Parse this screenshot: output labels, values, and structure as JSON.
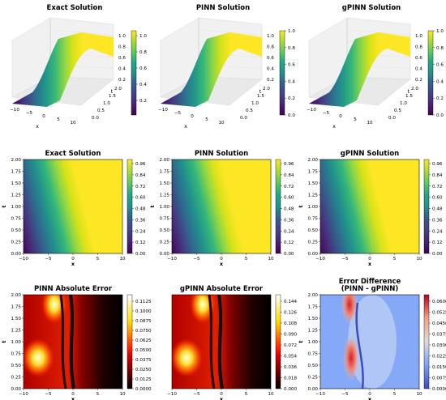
{
  "chart_data": [
    {
      "type": "surface3d",
      "title": "Exact Solution",
      "x_label": "x",
      "t_label": "t",
      "x_ticks": [
        "−10",
        "−5",
        "0",
        "5",
        "10"
      ],
      "t_ticks": [
        "0.0",
        "0.5",
        "1.0",
        "1.5",
        "2.0"
      ],
      "z_ticks": [
        "0.2",
        "0.4",
        "0.6",
        "0.8",
        "1.0"
      ],
      "colorbar_ticks": [
        "0.2",
        "0.4",
        "0.6",
        "0.8",
        "1.0"
      ],
      "colormap": "viridis"
    },
    {
      "type": "surface3d",
      "title": "PINN Solution",
      "x_label": "x",
      "t_label": "t",
      "x_ticks": [
        "−10",
        "−5",
        "0",
        "5",
        "10"
      ],
      "t_ticks": [
        "0.0",
        "0.5",
        "1.0",
        "1.5",
        "2.0"
      ],
      "z_ticks": [
        "0.2",
        "0.4",
        "0.6",
        "0.8",
        "1.0"
      ],
      "colorbar_ticks": [
        "0.0",
        "0.2",
        "0.4",
        "0.6",
        "0.8",
        "1.0"
      ],
      "colormap": "viridis"
    },
    {
      "type": "surface3d",
      "title": "gPINN Solution",
      "x_label": "x",
      "t_label": "t",
      "x_ticks": [
        "−10",
        "−5",
        "0",
        "5",
        "10"
      ],
      "t_ticks": [
        "0.0",
        "0.5",
        "1.0",
        "1.5",
        "2.0"
      ],
      "z_ticks": [
        "0.2",
        "0.4",
        "0.6",
        "0.8",
        "1.0"
      ],
      "colorbar_ticks": [
        "0.0",
        "0.2",
        "0.4",
        "0.6",
        "0.8",
        "1.0"
      ],
      "colormap": "viridis"
    },
    {
      "type": "heatmap",
      "title": "Exact Solution",
      "xlabel": "x",
      "ylabel": "t",
      "x_ticks": [
        "−10",
        "−5",
        "0",
        "5",
        "10"
      ],
      "y_ticks": [
        "0.00",
        "0.25",
        "0.50",
        "0.75",
        "1.00",
        "1.25",
        "1.50",
        "1.75",
        "2.00"
      ],
      "colorbar_ticks": [
        "0.00",
        "0.12",
        "0.24",
        "0.36",
        "0.48",
        "0.60",
        "0.72",
        "0.84",
        "0.96"
      ],
      "colormap": "viridis"
    },
    {
      "type": "heatmap",
      "title": "PINN Solution",
      "xlabel": "x",
      "ylabel": "t",
      "x_ticks": [
        "−10",
        "−5",
        "0",
        "5",
        "10"
      ],
      "y_ticks": [
        "0.00",
        "0.25",
        "0.50",
        "0.75",
        "1.00",
        "1.25",
        "1.50",
        "1.75",
        "2.00"
      ],
      "colorbar_ticks": [
        "0.00",
        "0.12",
        "0.24",
        "0.36",
        "0.48",
        "0.60",
        "0.72",
        "0.84",
        "0.96"
      ],
      "colormap": "viridis"
    },
    {
      "type": "heatmap",
      "title": "gPINN Solution",
      "xlabel": "x",
      "ylabel": "t",
      "x_ticks": [
        "−10",
        "−5",
        "0",
        "5",
        "10"
      ],
      "y_ticks": [
        "0.00",
        "0.25",
        "0.50",
        "0.75",
        "1.00",
        "1.25",
        "1.50",
        "1.75",
        "2.00"
      ],
      "colorbar_ticks": [
        "0.00",
        "0.12",
        "0.24",
        "0.36",
        "0.48",
        "0.60",
        "0.72",
        "0.84",
        "0.96"
      ],
      "colormap": "viridis"
    },
    {
      "type": "heatmap",
      "title": "PINN Absolute Error",
      "xlabel": "x",
      "ylabel": "t",
      "x_ticks": [
        "−10",
        "−5",
        "0",
        "5",
        "10"
      ],
      "y_ticks": [
        "0.00",
        "0.25",
        "0.50",
        "0.75",
        "1.00",
        "1.25",
        "1.50",
        "1.75",
        "2.00"
      ],
      "colorbar_ticks": [
        "0.0000",
        "0.0125",
        "0.0250",
        "0.0375",
        "0.0500",
        "0.0625",
        "0.0750",
        "0.0875",
        "0.1000",
        "0.1125"
      ],
      "colormap": "hot"
    },
    {
      "type": "heatmap",
      "title": "gPINN Absolute Error",
      "xlabel": "x",
      "ylabel": "",
      "x_ticks": [
        "−10",
        "−5",
        "0",
        "5",
        "10"
      ],
      "y_ticks": [],
      "colorbar_ticks": [
        "0.000",
        "0.018",
        "0.036",
        "0.054",
        "0.072",
        "0.090",
        "0.108",
        "0.126",
        "0.144"
      ],
      "colormap": "hot"
    },
    {
      "type": "heatmap",
      "title": "Error Difference\n(PINN - gPINN)",
      "xlabel": "x",
      "ylabel": "t",
      "x_ticks": [
        "−10",
        "−5",
        "0",
        "5",
        "10"
      ],
      "y_ticks": [
        "0.00",
        "0.25",
        "0.50",
        "0.75",
        "1.00",
        "1.25",
        "1.50",
        "1.75",
        "2.00"
      ],
      "colorbar_ticks": [
        "0.0000",
        "0.0075",
        "0.0150",
        "0.0225",
        "0.0300",
        "0.0375",
        "0.0450",
        "0.0525",
        "0.0600"
      ],
      "colormap": "coolwarm"
    }
  ]
}
